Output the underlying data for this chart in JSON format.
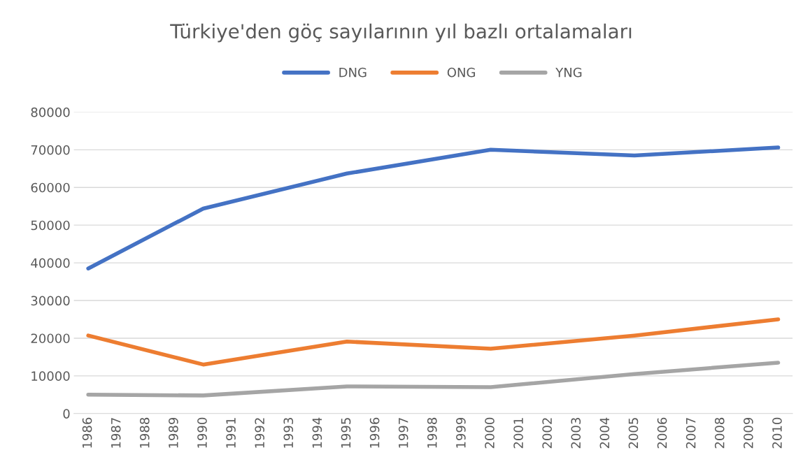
{
  "chart_data": {
    "type": "line",
    "title": "Türkiye'den göç sayılarının yıl bazlı ortalamaları",
    "series": [
      {
        "name": "DNG",
        "color": "#4472c4",
        "x": [
          1986,
          1990,
          1995,
          2000,
          2005,
          2010
        ],
        "values": [
          38500,
          54400,
          63700,
          70000,
          68500,
          70600
        ]
      },
      {
        "name": "ONG",
        "color": "#ed7d31",
        "x": [
          1986,
          1990,
          1995,
          2000,
          2005,
          2010
        ],
        "values": [
          20700,
          13000,
          19100,
          17200,
          20700,
          25000
        ]
      },
      {
        "name": "YNG",
        "color": "#a5a5a5",
        "x": [
          1986,
          1990,
          1995,
          2000,
          2005,
          2010
        ],
        "values": [
          5000,
          4800,
          7200,
          7000,
          10500,
          13500
        ]
      }
    ],
    "xlim": [
      1985.5,
      2010.5
    ],
    "xticks": [
      1986,
      1987,
      1988,
      1989,
      1990,
      1991,
      1992,
      1993,
      1994,
      1995,
      1996,
      1997,
      1998,
      1999,
      2000,
      2001,
      2002,
      2003,
      2004,
      2005,
      2006,
      2007,
      2008,
      2009,
      2010
    ],
    "ylim": [
      0,
      80000
    ],
    "yticks": [
      0,
      10000,
      20000,
      30000,
      40000,
      50000,
      60000,
      70000,
      80000
    ],
    "grid": "y",
    "legend": "top",
    "marker": "none",
    "line_style": "solid"
  }
}
